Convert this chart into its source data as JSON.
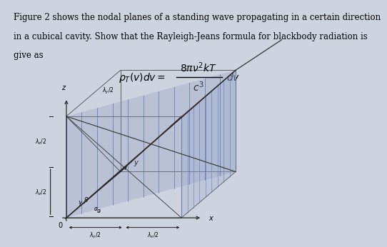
{
  "background_color": "#cdd4e0",
  "text_lines": [
    "Figure 2 shows the nodal planes of a standing wave propagating in a certain direction",
    "in a cubical cavity. Show that the Rayleigh-Jeans formula for blackbody radiation is",
    "give as"
  ],
  "text_fontsize": 8.5,
  "formula_fontsize": 10,
  "line_color": "#2a2a2a",
  "hatch_color1": "#7788aa",
  "hatch_color2": "#aa8888",
  "face_color1": "#9aabcc",
  "face_color2": "#cc9999",
  "face_color3": "#aabbcc"
}
